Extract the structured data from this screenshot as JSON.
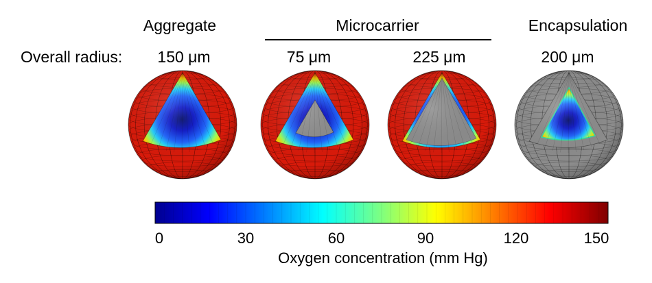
{
  "headers": {
    "aggregate": "Aggregate",
    "microcarrier": "Microcarrier",
    "encapsulation": "Encapsulation"
  },
  "radius_row": {
    "label": "Overall radius:",
    "values": [
      "150 μm",
      "75 μm",
      "225 μm",
      "200 μm"
    ]
  },
  "models": [
    {
      "core": "gradient",
      "inner_gray": false,
      "gray_shell": false
    },
    {
      "core": "gradient",
      "inner_gray": true,
      "gray_shell": false
    },
    {
      "core": "gray",
      "inner_gray": true,
      "gray_shell": false
    },
    {
      "core": "gradient",
      "inner_gray": false,
      "gray_shell": true
    }
  ],
  "colorbar": {
    "ticks": [
      "0",
      "30",
      "60",
      "90",
      "120",
      "150"
    ],
    "label": "Oxygen concentration (mm Hg)",
    "min": 0,
    "max": 150,
    "colormap": "jet"
  },
  "colors": {
    "surface_red": "#d81a0a",
    "gray_matrix": "#8c8c8c",
    "deep_blue": "#0a14c8"
  }
}
